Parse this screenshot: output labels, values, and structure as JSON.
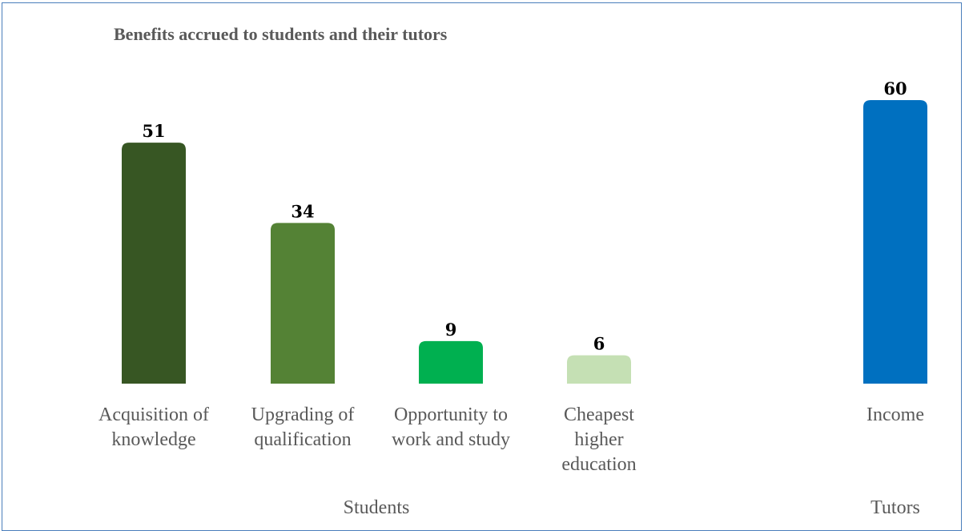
{
  "chart_data": {
    "type": "bar",
    "title": "Benefits accrued to students and their tutors",
    "categories": [
      [
        "Acquisition of",
        "knowledge"
      ],
      [
        "Upgrading of",
        "qualification"
      ],
      [
        "Opportunity to",
        "work and study"
      ],
      [
        "Cheapest",
        "higher",
        "education"
      ],
      [
        "Income"
      ]
    ],
    "values": [
      51,
      34,
      9,
      6,
      60
    ],
    "groups": [
      {
        "label": "Students",
        "members": [
          0,
          1,
          2,
          3
        ]
      },
      {
        "label": "Tutors",
        "members": [
          4
        ]
      }
    ],
    "colors": [
      "#375623",
      "#548235",
      "#00b050",
      "#c5e0b4",
      "#0070c0"
    ],
    "data_labels": true,
    "grid": false,
    "legend": "none"
  }
}
